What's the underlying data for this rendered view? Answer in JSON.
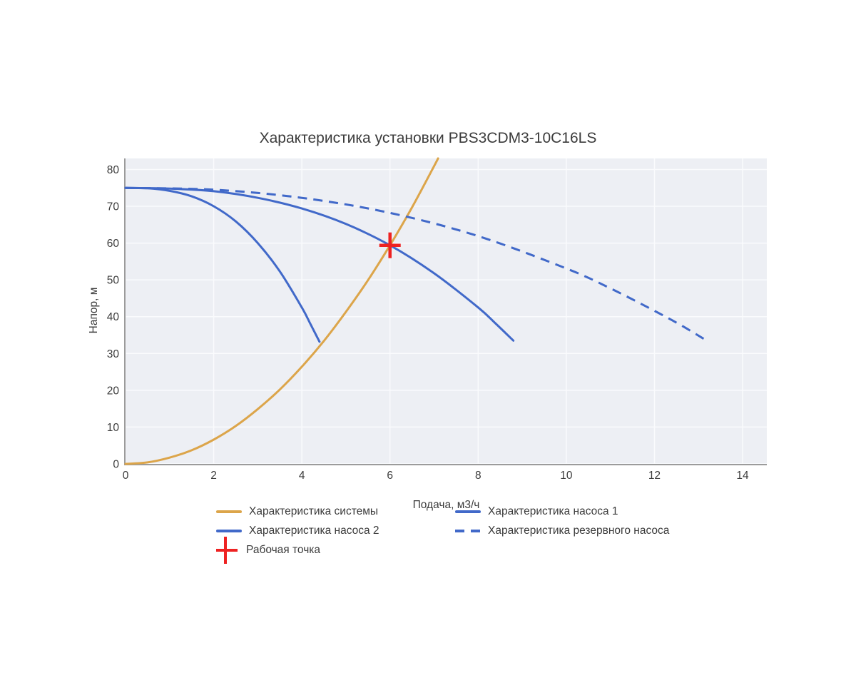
{
  "chart_data": {
    "type": "line",
    "title": "Характеристика установки PBS3CDM3-10C16LS",
    "xlabel": "Подача, м3/ч",
    "ylabel": "Напор, м",
    "xlim": [
      0,
      14.55
    ],
    "ylim": [
      0,
      83
    ],
    "xticks": [
      0,
      2,
      4,
      6,
      8,
      10,
      12,
      14
    ],
    "yticks": [
      0,
      10,
      20,
      30,
      40,
      50,
      60,
      70,
      80
    ],
    "grid": true,
    "legend_position": "bottom",
    "plot_bg": "#edeff4",
    "grid_color": "#fafbfd",
    "axis_color": "#9b9b9b",
    "series": [
      {
        "id": "system",
        "name": "Характеристика системы",
        "color": "#dca54a",
        "dash": "solid",
        "width": 3,
        "points": [
          [
            0,
            0
          ],
          [
            0.5,
            0.4
          ],
          [
            1,
            1.7
          ],
          [
            1.5,
            3.7
          ],
          [
            2,
            6.6
          ],
          [
            2.5,
            10.3
          ],
          [
            3,
            14.9
          ],
          [
            3.5,
            20.2
          ],
          [
            4,
            26.4
          ],
          [
            4.5,
            33.4
          ],
          [
            5,
            41.3
          ],
          [
            5.5,
            49.9
          ],
          [
            6,
            59.4
          ],
          [
            6.5,
            69.7
          ],
          [
            7,
            80.9
          ],
          [
            7.09,
            83
          ]
        ]
      },
      {
        "id": "pump1",
        "name": "Характеристика насоса 1",
        "color": "#4169c9",
        "dash": "solid",
        "width": 3,
        "points": [
          [
            0,
            75
          ],
          [
            0.5,
            74.9
          ],
          [
            1,
            74.2
          ],
          [
            1.5,
            72.7
          ],
          [
            2,
            70
          ],
          [
            2.5,
            65.9
          ],
          [
            3,
            60
          ],
          [
            3.5,
            52.3
          ],
          [
            4,
            42.5
          ],
          [
            4.2,
            37.9
          ],
          [
            4.4,
            33.2
          ]
        ]
      },
      {
        "id": "pump2",
        "name": "Характеристика насоса 2",
        "color": "#4169c9",
        "dash": "solid",
        "width": 3,
        "points": [
          [
            0,
            75
          ],
          [
            1,
            74.8
          ],
          [
            2,
            74.1
          ],
          [
            3,
            72.3
          ],
          [
            4,
            69.4
          ],
          [
            5,
            65.2
          ],
          [
            6,
            59.4
          ],
          [
            7,
            51.8
          ],
          [
            8,
            42.5
          ],
          [
            8.4,
            38.1
          ],
          [
            8.8,
            33.5
          ]
        ]
      },
      {
        "id": "reserve",
        "name": "Характеристика резервного насоса",
        "color": "#4169c9",
        "dash": "dash",
        "width": 3,
        "points": [
          [
            0,
            75
          ],
          [
            2,
            74.5
          ],
          [
            4,
            72.3
          ],
          [
            6,
            68.2
          ],
          [
            8,
            61.9
          ],
          [
            10,
            53.1
          ],
          [
            11,
            47.7
          ],
          [
            12,
            41.6
          ],
          [
            12.6,
            37.7
          ],
          [
            13.2,
            33.4
          ]
        ]
      }
    ],
    "working_point": {
      "name": "Рабочая точка",
      "x": 6,
      "y": 59.4,
      "color": "#ee2222"
    }
  },
  "legend": {
    "items": [
      {
        "label": "Характеристика системы",
        "swatch": "solid-line",
        "color": "#dca54a"
      },
      {
        "label": "Характеристика насоса 1",
        "swatch": "solid-line",
        "color": "#4169c9"
      },
      {
        "label": "Характеристика насоса 2",
        "swatch": "solid-line",
        "color": "#4169c9"
      },
      {
        "label": "Характеристика резервного насоса",
        "swatch": "dashed-line",
        "color": "#4169c9"
      },
      {
        "label": "Рабочая точка",
        "swatch": "cross",
        "color": "#ee2222"
      }
    ]
  }
}
